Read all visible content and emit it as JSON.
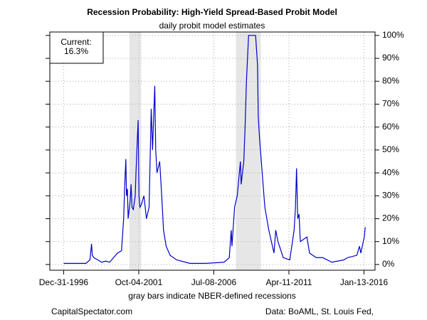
{
  "chart_data": {
    "type": "line",
    "title": "Recession Probability: High-Yield Spread-Based Probit Model",
    "subtitle": "daily probit model estimates",
    "xlabel": "gray bars indicate NBER-defined recessions",
    "source_left": "CapitalSpectator.com",
    "source_right": "Data: BoAML, St. Louis Fed,",
    "annotation": [
      "Current:",
      "16.3%"
    ],
    "grid": true,
    "y_axis_side": "right",
    "shaded_periods": [
      [
        "2001-03-01",
        "2001-11-30"
      ],
      [
        "2007-12-01",
        "2009-06-30"
      ]
    ],
    "shade_color": "#e6e6e6",
    "xlim": [
      "1996-02-15",
      "2016-09-25"
    ],
    "xticks": [
      {
        "value": "1996-12-31",
        "label": "Dec-31-1996"
      },
      {
        "value": "2001-10-04",
        "label": "Oct-04-2001"
      },
      {
        "value": "2006-07-08",
        "label": "Jul-08-2006"
      },
      {
        "value": "2011-04-11",
        "label": "Apr-11-2011"
      },
      {
        "value": "2016-01-13",
        "label": "Jan-13-2016"
      }
    ],
    "ylim": [
      -2.5,
      101.5
    ],
    "yticks": [
      {
        "value": 0,
        "label": "0%"
      },
      {
        "value": 10,
        "label": "10%"
      },
      {
        "value": 20,
        "label": "20%"
      },
      {
        "value": 30,
        "label": "30%"
      },
      {
        "value": 40,
        "label": "40%"
      },
      {
        "value": 50,
        "label": "50%"
      },
      {
        "value": 60,
        "label": "60%"
      },
      {
        "value": 70,
        "label": "70%"
      },
      {
        "value": 80,
        "label": "80%"
      },
      {
        "value": 90,
        "label": "90%"
      },
      {
        "value": 100,
        "label": "100%"
      }
    ],
    "series": [
      {
        "name": "Recession probability",
        "color": "#0000cc",
        "x": [
          "1997-01-01",
          "1998-06-01",
          "1998-09-01",
          "1998-10-08",
          "1998-10-25",
          "1998-12-01",
          "1999-03-01",
          "1999-06-01",
          "1999-09-01",
          "1999-12-01",
          "2000-03-01",
          "2000-06-01",
          "2000-09-01",
          "2000-10-20",
          "2000-11-15",
          "2000-12-10",
          "2000-12-25",
          "2001-01-15",
          "2001-02-01",
          "2001-03-20",
          "2001-04-10",
          "2001-05-01",
          "2001-06-01",
          "2001-07-15",
          "2001-08-01",
          "2001-09-20",
          "2001-10-10",
          "2001-11-01",
          "2001-12-01",
          "2002-02-01",
          "2002-04-01",
          "2002-06-01",
          "2002-07-20",
          "2002-08-20",
          "2002-10-10",
          "2002-11-01",
          "2002-12-01",
          "2003-02-01",
          "2003-03-20",
          "2003-05-01",
          "2003-07-01",
          "2003-10-01",
          "2004-03-01",
          "2005-01-01",
          "2006-01-01",
          "2007-03-01",
          "2007-07-01",
          "2007-08-15",
          "2007-09-01",
          "2007-11-01",
          "2008-01-01",
          "2008-03-15",
          "2008-04-01",
          "2008-06-01",
          "2008-07-01",
          "2008-08-01",
          "2008-09-20",
          "2009-03-01",
          "2009-04-15",
          "2009-05-01",
          "2009-06-01",
          "2009-08-01",
          "2009-10-01",
          "2010-01-01",
          "2010-05-01",
          "2010-06-10",
          "2010-08-01",
          "2010-12-01",
          "2011-05-01",
          "2011-08-10",
          "2011-09-10",
          "2011-10-05",
          "2011-11-01",
          "2011-12-01",
          "2012-01-01",
          "2012-06-01",
          "2012-08-01",
          "2013-01-01",
          "2013-06-01",
          "2014-01-01",
          "2014-10-01",
          "2015-01-01",
          "2015-08-01",
          "2015-10-01",
          "2015-11-01",
          "2016-01-20",
          "2016-02-11"
        ],
        "values": [
          0.5,
          0.5,
          2,
          9,
          4,
          3,
          2,
          1,
          1.5,
          1,
          3,
          5,
          6,
          20,
          35,
          46,
          30,
          33,
          20,
          28,
          35,
          25,
          24,
          30,
          40,
          63,
          30,
          25,
          26,
          30,
          20,
          25,
          68,
          50,
          78,
          50,
          40,
          45,
          30,
          15,
          8,
          4,
          2,
          0.5,
          0.5,
          1,
          3,
          15,
          8,
          25,
          30,
          45,
          35,
          45,
          60,
          80,
          100,
          100,
          87,
          65,
          55,
          40,
          25,
          15,
          5,
          15,
          10,
          3,
          2,
          15,
          25,
          42,
          20,
          22,
          10,
          12,
          5,
          3,
          3,
          1,
          2,
          3,
          4,
          8,
          5,
          12,
          16.3
        ]
      }
    ]
  }
}
